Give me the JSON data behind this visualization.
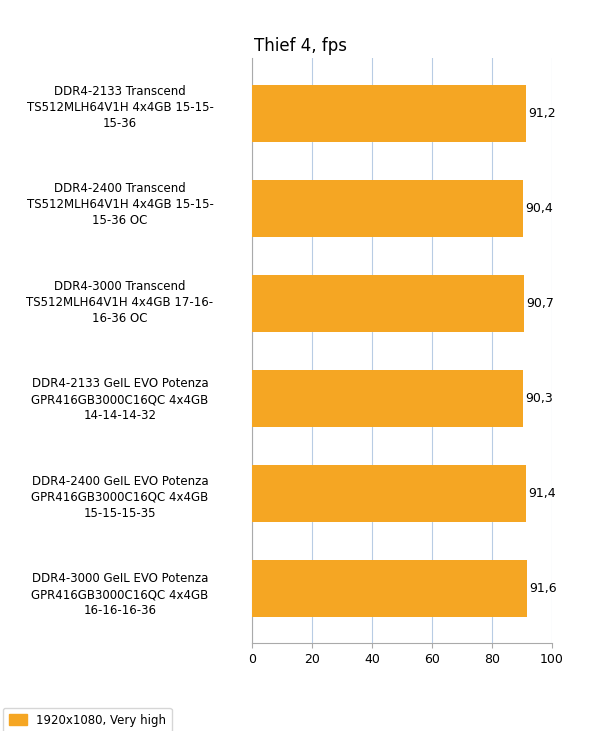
{
  "title": "Thief 4, fps",
  "categories": [
    "DDR4-2133 Transcend\nTS512MLH64V1H 4x4GB 15-15-\n15-36",
    "DDR4-2400 Transcend\nTS512MLH64V1H 4x4GB 15-15-\n15-36 OC",
    "DDR4-3000 Transcend\nTS512MLH64V1H 4x4GB 17-16-\n16-36 OC",
    "DDR4-2133 GeIL EVO Potenza\nGPR416GB3000C16QC 4x4GB\n14-14-14-32",
    "DDR4-2400 GeIL EVO Potenza\nGPR416GB3000C16QC 4x4GB\n15-15-15-35",
    "DDR4-3000 GeIL EVO Potenza\nGPR416GB3000C16QC 4x4GB\n16-16-16-36"
  ],
  "values": [
    91.2,
    90.4,
    90.7,
    90.3,
    91.4,
    91.6
  ],
  "bar_color": "#F5A623",
  "value_labels": [
    "91,2",
    "90,4",
    "90,7",
    "90,3",
    "91,4",
    "91,6"
  ],
  "xlim": [
    0,
    100
  ],
  "xticks": [
    0,
    20,
    40,
    60,
    80,
    100
  ],
  "legend_label": "1920x1080, Very high",
  "legend_color": "#F5A623",
  "bg_color": "#ffffff",
  "grid_color": "#b8cce4",
  "title_fontsize": 12,
  "label_fontsize": 8.5,
  "tick_fontsize": 9,
  "value_fontsize": 9
}
